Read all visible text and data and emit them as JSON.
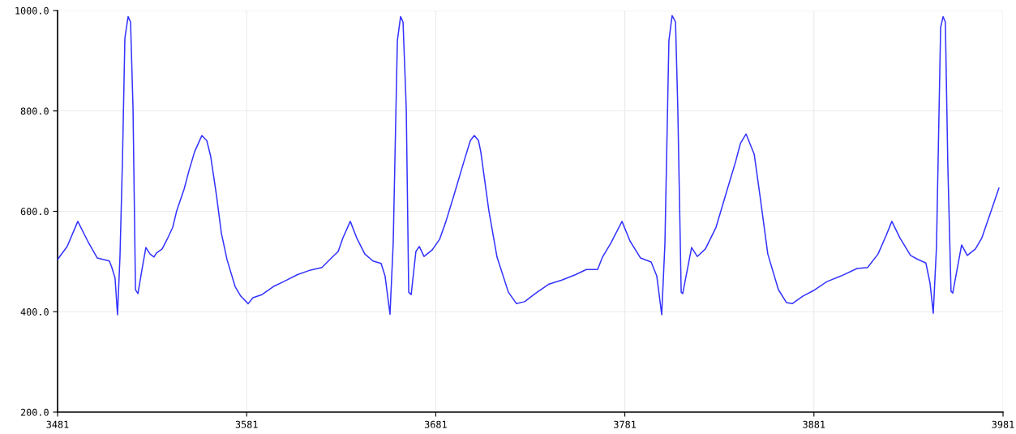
{
  "chart_data": {
    "type": "line",
    "xlim": [
      3481,
      3981
    ],
    "ylim": [
      200,
      1000
    ],
    "xticks": [
      3481,
      3581,
      3681,
      3781,
      3881,
      3981
    ],
    "yticks": [
      {
        "value": 200,
        "label": "200.0"
      },
      {
        "value": 400,
        "label": "400.0"
      },
      {
        "value": 600,
        "label": "600.0"
      },
      {
        "value": 800,
        "label": "800.0"
      },
      {
        "value": 1000,
        "label": "1000.0"
      }
    ],
    "grid": true,
    "marker": "none",
    "line_style": "solid",
    "series": [
      {
        "color": "#3333ff",
        "x": [
          3481,
          3486.1,
          3491.7,
          3496.9,
          3502.0,
          3508.4,
          3509.7,
          3511.4,
          3512.7,
          3514.0,
          3515.3,
          3516.6,
          3518.3,
          3519.6,
          3520.9,
          3522.2,
          3523.5,
          3525.6,
          3527.7,
          3529.9,
          3532.0,
          3533.3,
          3536.3,
          3539.3,
          3541.9,
          3544.0,
          3547.9,
          3550.5,
          3553.5,
          3557.3,
          3559.9,
          3562.0,
          3565.0,
          3567.6,
          3570.6,
          3574.9,
          3577.9,
          3581.8,
          3584.3,
          3589.1,
          3595.1,
          3600.6,
          3607.9,
          3614.8,
          3620.8,
          3626.4,
          3629.4,
          3631.9,
          3635.8,
          3639.2,
          3643.5,
          3647.8,
          3652.1,
          3654.2,
          3656.8,
          3658.5,
          3660.7,
          3662.4,
          3663.7,
          3665.4,
          3666.7,
          3668.0,
          3670.5,
          3672.3,
          3674.8,
          3679.1,
          3683.0,
          3686.4,
          3690.7,
          3695.8,
          3699.3,
          3701.4,
          3703.6,
          3704.8,
          3709.1,
          3713.4,
          3719.4,
          3723.7,
          3728.0,
          3733.6,
          3740.9,
          3747.7,
          3755.0,
          3760.6,
          3766.6,
          3769.2,
          3773.5,
          3779.5,
          3783.7,
          3789.3,
          3794.9,
          3797.9,
          3800.5,
          3802.2,
          3804.3,
          3806.0,
          3807.8,
          3809.0,
          3810.8,
          3811.6,
          3816.3,
          3819.3,
          3823.6,
          3829.2,
          3835.2,
          3839.5,
          3842.1,
          3845.1,
          3849.4,
          3852.4,
          3856.6,
          3862.2,
          3866.5,
          3869.5,
          3875.1,
          3880.7,
          3887.9,
          3895.2,
          3903.8,
          3909.4,
          3914.9,
          3919.2,
          3922.2,
          3926.5,
          3932.1,
          3935.5,
          3940.2,
          3942.4,
          3944.1,
          3945.8,
          3948.0,
          3949.3,
          3950.5,
          3951.8,
          3953.5,
          3954.4,
          3959.1,
          3962.1,
          3966.4,
          3969.8,
          3975.0,
          3978.8
        ],
        "values": [
          504,
          530,
          580,
          541,
          507,
          501,
          488,
          467,
          394,
          509,
          698,
          945,
          988,
          977,
          806,
          444,
          436,
          483,
          528,
          515,
          509,
          517,
          525,
          547,
          568,
          601,
          644,
          681,
          719,
          751,
          741,
          709,
          633,
          557,
          504,
          450,
          431,
          416,
          428,
          434,
          450,
          460,
          474,
          483,
          488,
          509,
          520,
          547,
          580,
          547,
          515,
          501,
          496,
          471,
          395,
          536,
          940,
          988,
          977,
          806,
          439,
          434,
          520,
          530,
          510,
          523,
          544,
          580,
          633,
          698,
          741,
          751,
          741,
          719,
          601,
          509,
          439,
          416,
          420,
          436,
          455,
          463,
          474,
          484,
          484,
          509,
          536,
          580,
          541,
          507,
          499,
          471,
          394,
          536,
          940,
          990,
          977,
          806,
          439,
          436,
          528,
          510,
          525,
          568,
          644,
          698,
          735,
          754,
          714,
          633,
          515,
          444,
          418,
          416,
          431,
          442,
          460,
          471,
          486,
          488,
          515,
          552,
          580,
          547,
          512,
          505,
          497,
          457,
          397,
          528,
          966,
          988,
          977,
          693,
          441,
          437,
          533,
          512,
          525,
          547,
          604,
          646
        ]
      }
    ]
  }
}
